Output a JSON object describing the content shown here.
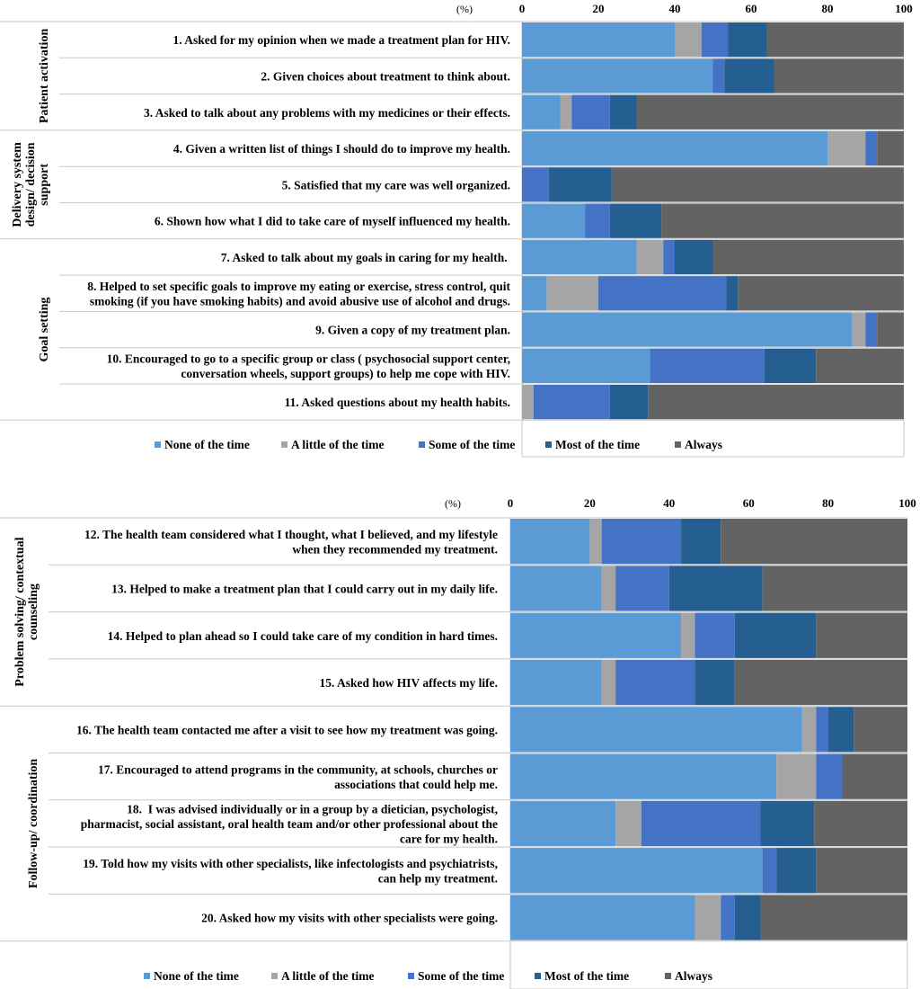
{
  "chart_data": [
    {
      "type": "bar",
      "stacked": true,
      "orientation": "horizontal",
      "unit_label": "(%)",
      "xlim": [
        0,
        100
      ],
      "xticks": [
        "0",
        "20",
        "40",
        "60",
        "80",
        "100"
      ],
      "legend_position": "bottom",
      "legend": [
        "None of the time",
        "A little of the time",
        "Some of the time",
        "Most of the time",
        "Always"
      ],
      "colors": [
        "#5b9bd5",
        "#a5a5a5",
        "#4472c4",
        "#255e91",
        "#636363"
      ],
      "groups": [
        {
          "name": "Patient activation",
          "lines": [
            "Patient activation"
          ],
          "start": 0,
          "count": 3
        },
        {
          "name": "Delivery system design/ decision support",
          "lines": [
            "Delivery system",
            "design/ decision",
            "support"
          ],
          "start": 3,
          "count": 3
        },
        {
          "name": "Goal setting",
          "lines": [
            "Goal setting"
          ],
          "start": 6,
          "count": 5
        }
      ],
      "categories": [
        {
          "label": [
            "1. Asked for my opinion when we made a treatment plan for HIV."
          ],
          "values": [
            40,
            7,
            7,
            10,
            36
          ]
        },
        {
          "label": [
            "2. Given choices about treatment to think about."
          ],
          "values": [
            50,
            0,
            3,
            13,
            34
          ]
        },
        {
          "label": [
            "3. Asked to talk about any problems with my medicines or their effects."
          ],
          "values": [
            10,
            3,
            10,
            7,
            70
          ]
        },
        {
          "label": [
            "4. Given a written list of things I should do to improve my health."
          ],
          "values": [
            80,
            10,
            3,
            0,
            7
          ]
        },
        {
          "label": [
            "5. Satisfied that my care was well organized."
          ],
          "values": [
            0,
            0,
            7,
            16.5,
            76.5
          ]
        },
        {
          "label": [
            "6. Shown how what I did to take care of myself influenced my health."
          ],
          "values": [
            16.5,
            0,
            6.5,
            13.5,
            63.5
          ]
        },
        {
          "label": [
            "7. Asked to talk about my goals in caring for my health. "
          ],
          "values": [
            30,
            7,
            3,
            10,
            50
          ]
        },
        {
          "label": [
            "8. Helped to set specific goals to improve my eating or exercise, stress control, quit",
            "smoking (if you have smoking habits) and avoid abusive use of alcohol and drugs."
          ],
          "values": [
            6.5,
            13.5,
            33.5,
            3,
            43.5
          ]
        },
        {
          "label": [
            "9. Given a copy of my treatment plan."
          ],
          "values": [
            86.5,
            3.5,
            3,
            0,
            7
          ]
        },
        {
          "label": [
            "10. Encouraged to go to a specific group or class ( psychosocial support center,",
            "conversation wheels, support groups) to help me cope with HIV."
          ],
          "values": [
            33.5,
            0,
            30,
            13.5,
            23
          ]
        },
        {
          "label": [
            "11. Asked questions about my health habits."
          ],
          "values": [
            0,
            3,
            20,
            10,
            67
          ]
        }
      ]
    },
    {
      "type": "bar",
      "stacked": true,
      "orientation": "horizontal",
      "unit_label": "(%)",
      "xlim": [
        0,
        100
      ],
      "xticks": [
        "0",
        "20",
        "40",
        "60",
        "80",
        "100"
      ],
      "legend_position": "bottom",
      "legend": [
        "None of the time",
        "A little of the time",
        "Some of the time",
        "Most of the time",
        "Always"
      ],
      "colors": [
        "#5b9bd5",
        "#a5a5a5",
        "#4472c4",
        "#255e91",
        "#636363"
      ],
      "groups": [
        {
          "name": "Problem solving/ contextual counseling",
          "lines": [
            "Problem solving/ contextual",
            "counseling"
          ],
          "start": 0,
          "count": 4
        },
        {
          "name": "Follow-up/ coordination",
          "lines": [
            "Follow-up/ coordination"
          ],
          "start": 4,
          "count": 5
        }
      ],
      "categories": [
        {
          "label": [
            "12. The health team considered what I thought, what I believed, and my lifestyle",
            "when they recommended my treatment."
          ],
          "values": [
            20,
            3,
            20,
            10,
            47
          ]
        },
        {
          "label": [
            "13. Helped to make a treatment plan that I could carry out in my daily life."
          ],
          "values": [
            23,
            3.5,
            13.5,
            23.5,
            36.5
          ]
        },
        {
          "label": [
            "14. Helped to plan ahead so I could take care of my condition in hard times."
          ],
          "values": [
            43,
            3.5,
            10,
            20.5,
            23
          ]
        },
        {
          "label": [
            "15. Asked how HIV affects my life."
          ],
          "values": [
            23,
            3.5,
            20,
            10,
            43.5
          ]
        },
        {
          "label": [
            "16. The health team contacted me after a visit to see how my treatment was going."
          ],
          "values": [
            73.5,
            3.5,
            3,
            6.5,
            13.5
          ]
        },
        {
          "label": [
            "17. Encouraged to attend programs in the community, at schools, churches or",
            "associations that could help me."
          ],
          "values": [
            67,
            10,
            6.5,
            0,
            16.5
          ]
        },
        {
          "label": [
            "18.  I was advised individually or in a group by a dietician, psychologist,",
            "pharmacist, social assistant, oral health team and/or other professional about the",
            "care for my health."
          ],
          "values": [
            26.5,
            6.5,
            30,
            13.5,
            23.5
          ]
        },
        {
          "label": [
            "19. Told how my visits with other specialists, like infectologists and psychiatrists,",
            "can help my treatment."
          ],
          "values": [
            63.5,
            0,
            3.5,
            10,
            23
          ]
        },
        {
          "label": [
            "20. Asked how my visits with other specialists were going."
          ],
          "values": [
            46.5,
            6.5,
            3.5,
            6.5,
            37
          ]
        }
      ]
    }
  ]
}
